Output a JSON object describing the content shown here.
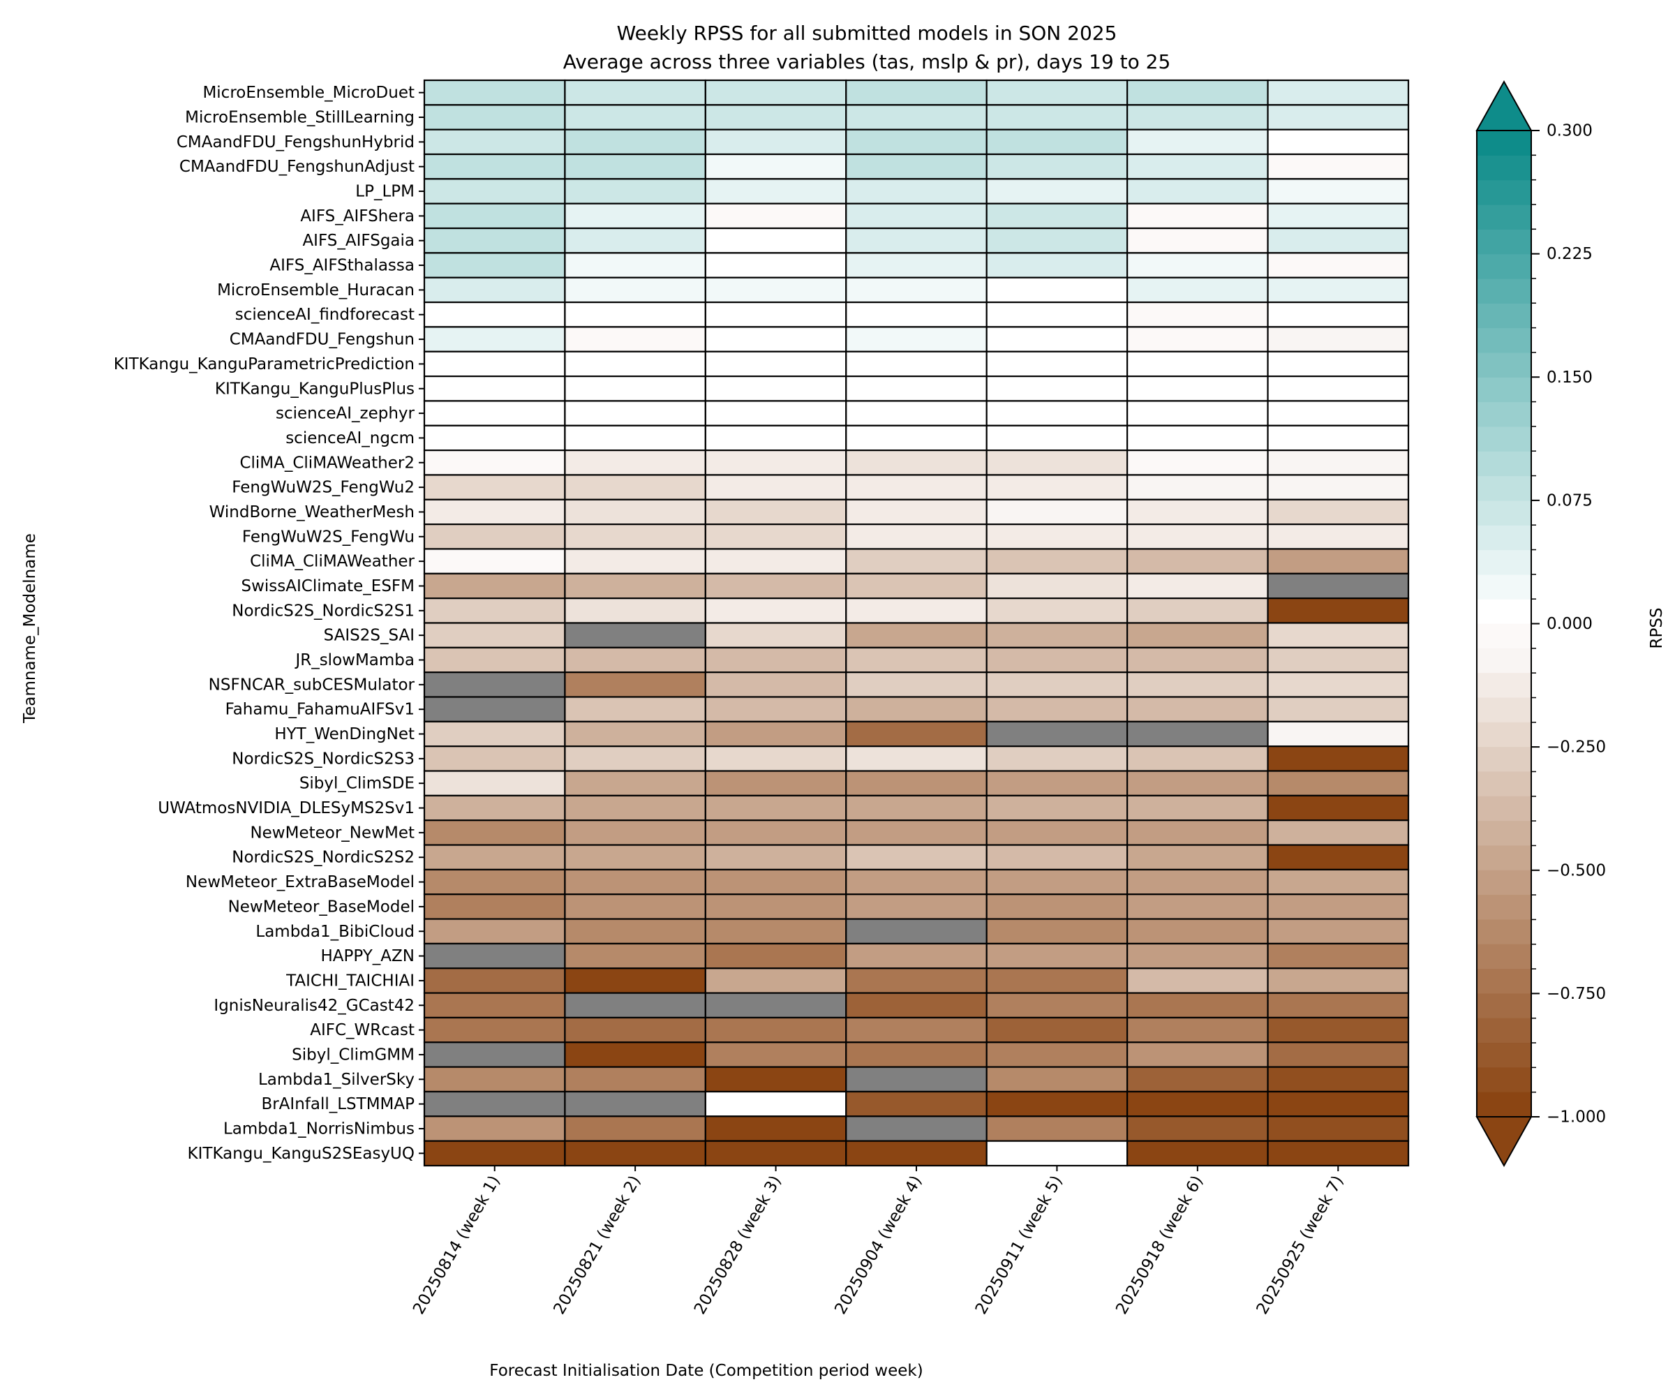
{
  "chart_data": {
    "type": "heatmap",
    "title": "Weekly RPSS for all submitted models in SON 2025",
    "subtitle": "Average across three variables (tas, mslp & pr), days 19 to 25",
    "xlabel": "Forecast Initialisation Date (Competition period week)",
    "ylabel": "Teamname_Modelname",
    "colorbar": {
      "label": "RPSS",
      "ticks": [
        "0.300",
        "0.225",
        "0.150",
        "0.075",
        "0.000",
        "−0.250",
        "−0.500",
        "−0.750",
        "−1.000"
      ],
      "tick_values": [
        0.3,
        0.225,
        0.15,
        0.075,
        0.0,
        -0.25,
        -0.5,
        -0.75,
        -1.0
      ],
      "range": [
        -1.0,
        0.3
      ],
      "extend": "both",
      "positive_levels": 20,
      "negative_levels": 20,
      "positive_color": "#0e8c8a",
      "zero_color": "#ffffff",
      "negative_color": "#8b4513",
      "missing_color": "#808080"
    },
    "columns": [
      "20250814 (week 1)",
      "20250821 (week 2)",
      "20250828 (week 3)",
      "20250904 (week 4)",
      "20250911 (week 5)",
      "20250918 (week 6)",
      "20250925 (week 7)"
    ],
    "rows": [
      {
        "name": "MicroEnsemble_MicroDuet",
        "values": [
          0.08,
          0.068,
          0.068,
          0.08,
          0.068,
          0.08,
          0.053
        ]
      },
      {
        "name": "MicroEnsemble_StillLearning",
        "values": [
          0.08,
          0.068,
          0.068,
          0.068,
          0.068,
          0.068,
          0.053
        ]
      },
      {
        "name": "CMAandFDU_FengshunHybrid",
        "values": [
          0.068,
          0.08,
          0.053,
          0.08,
          0.08,
          0.038,
          0.005
        ]
      },
      {
        "name": "CMAandFDU_FengshunAdjust",
        "values": [
          0.08,
          0.08,
          0.022,
          0.08,
          0.068,
          0.053,
          -0.025
        ]
      },
      {
        "name": "LP_LPM",
        "values": [
          0.068,
          0.068,
          0.038,
          0.053,
          0.038,
          0.053,
          0.022
        ]
      },
      {
        "name": "AIFS_AIFShera",
        "values": [
          0.08,
          0.038,
          -0.025,
          0.053,
          0.068,
          -0.025,
          0.038
        ]
      },
      {
        "name": "AIFS_AIFSgaia",
        "values": [
          0.08,
          0.053,
          0.005,
          0.053,
          0.068,
          -0.025,
          0.053
        ]
      },
      {
        "name": "AIFS_AIFSthalassa",
        "values": [
          0.08,
          0.022,
          0.005,
          0.038,
          0.053,
          0.022,
          -0.025
        ]
      },
      {
        "name": "MicroEnsemble_Huracan",
        "values": [
          0.053,
          0.022,
          0.022,
          0.022,
          0.005,
          0.038,
          0.038
        ]
      },
      {
        "name": "scienceAI_findforecast",
        "values": [
          0.005,
          0.005,
          0.005,
          0.005,
          0.005,
          -0.025,
          0.005
        ]
      },
      {
        "name": "CMAandFDU_Fengshun",
        "values": [
          0.038,
          -0.025,
          0.005,
          0.022,
          0.005,
          -0.025,
          -0.075
        ]
      },
      {
        "name": "KITKangu_KanguParametricPrediction",
        "values": [
          0.005,
          0.005,
          0.005,
          0.005,
          0.005,
          0.005,
          0.005
        ]
      },
      {
        "name": "KITKangu_KanguPlusPlus",
        "values": [
          0.005,
          0.005,
          0.005,
          0.005,
          0.005,
          0.005,
          0.005
        ]
      },
      {
        "name": "scienceAI_zephyr",
        "values": [
          0.005,
          0.005,
          0.005,
          0.005,
          0.005,
          0.005,
          0.005
        ]
      },
      {
        "name": "scienceAI_ngcm",
        "values": [
          0.005,
          0.005,
          0.005,
          0.005,
          0.005,
          0.005,
          0.005
        ]
      },
      {
        "name": "CliMA_CliMAWeather2",
        "values": [
          -0.025,
          -0.125,
          -0.125,
          -0.175,
          -0.175,
          -0.025,
          -0.075
        ]
      },
      {
        "name": "FengWuW2S_FengWu2",
        "values": [
          -0.225,
          -0.225,
          -0.125,
          -0.125,
          -0.125,
          -0.075,
          -0.075
        ]
      },
      {
        "name": "WindBorne_WeatherMesh",
        "values": [
          -0.125,
          -0.175,
          -0.225,
          -0.125,
          -0.075,
          -0.125,
          -0.225
        ]
      },
      {
        "name": "FengWuW2S_FengWu",
        "values": [
          -0.275,
          -0.225,
          -0.225,
          -0.125,
          -0.125,
          -0.125,
          -0.125
        ]
      },
      {
        "name": "CliMA_CliMAWeather",
        "values": [
          -0.025,
          -0.125,
          -0.125,
          -0.275,
          -0.325,
          -0.375,
          -0.525
        ]
      },
      {
        "name": "SwissAIClimate_ESFM",
        "values": [
          -0.475,
          -0.425,
          -0.375,
          -0.325,
          -0.175,
          -0.125,
          null
        ]
      },
      {
        "name": "NordicS2S_NordicS2S1",
        "values": [
          -0.275,
          -0.175,
          -0.125,
          -0.125,
          -0.225,
          -0.275,
          -0.975
        ]
      },
      {
        "name": "SAIS2S_SAI",
        "values": [
          -0.275,
          null,
          -0.225,
          -0.475,
          -0.425,
          -0.475,
          -0.225
        ]
      },
      {
        "name": "JR_slowMamba",
        "values": [
          -0.325,
          -0.375,
          -0.375,
          -0.325,
          -0.375,
          -0.375,
          -0.275
        ]
      },
      {
        "name": "NSFNCAR_subCESMulator",
        "values": [
          null,
          -0.675,
          -0.375,
          -0.275,
          -0.275,
          -0.275,
          -0.225
        ]
      },
      {
        "name": "Fahamu_FahamuAIFSv1",
        "values": [
          null,
          -0.325,
          -0.375,
          -0.425,
          -0.375,
          -0.375,
          -0.275
        ]
      },
      {
        "name": "HYT_WenDingNet",
        "values": [
          -0.275,
          -0.425,
          -0.525,
          -0.775,
          null,
          null,
          -0.075
        ]
      },
      {
        "name": "NordicS2S_NordicS2S3",
        "values": [
          -0.325,
          -0.275,
          -0.225,
          -0.175,
          -0.275,
          -0.325,
          -0.975
        ]
      },
      {
        "name": "Sibyl_ClimSDE",
        "values": [
          -0.175,
          -0.475,
          -0.575,
          -0.575,
          -0.525,
          -0.525,
          -0.625
        ]
      },
      {
        "name": "UWAtmosNVIDIA_DLESyMS2Sv1",
        "values": [
          -0.425,
          -0.475,
          -0.475,
          -0.475,
          -0.425,
          -0.425,
          -0.975
        ]
      },
      {
        "name": "NewMeteor_NewMet",
        "values": [
          -0.625,
          -0.525,
          -0.525,
          -0.525,
          -0.525,
          -0.525,
          -0.425
        ]
      },
      {
        "name": "NordicS2S_NordicS2S2",
        "values": [
          -0.475,
          -0.475,
          -0.425,
          -0.325,
          -0.375,
          -0.475,
          -0.975
        ]
      },
      {
        "name": "NewMeteor_ExtraBaseModel",
        "values": [
          -0.625,
          -0.575,
          -0.575,
          -0.525,
          -0.525,
          -0.525,
          -0.475
        ]
      },
      {
        "name": "NewMeteor_BaseModel",
        "values": [
          -0.675,
          -0.575,
          -0.575,
          -0.525,
          -0.575,
          -0.525,
          -0.525
        ]
      },
      {
        "name": "Lambda1_BibiCloud",
        "values": [
          -0.525,
          -0.625,
          -0.625,
          null,
          -0.625,
          -0.575,
          -0.525
        ]
      },
      {
        "name": "HAPPY_AZN",
        "values": [
          null,
          -0.625,
          -0.725,
          -0.525,
          -0.525,
          -0.525,
          -0.675
        ]
      },
      {
        "name": "TAICHI_TAICHIAI",
        "values": [
          -0.775,
          -0.975,
          -0.475,
          -0.725,
          -0.725,
          -0.375,
          -0.475
        ]
      },
      {
        "name": "IgnisNeuralis42_GCast42",
        "values": [
          -0.725,
          null,
          null,
          -0.825,
          -0.675,
          -0.725,
          -0.725
        ]
      },
      {
        "name": "AIFC_WRcast",
        "values": [
          -0.725,
          -0.775,
          -0.725,
          -0.675,
          -0.825,
          -0.675,
          -0.875
        ]
      },
      {
        "name": "Sibyl_ClimGMM",
        "values": [
          null,
          -0.975,
          -0.675,
          -0.725,
          -0.675,
          -0.575,
          -0.775
        ]
      },
      {
        "name": "Lambda1_SilverSky",
        "values": [
          -0.625,
          -0.675,
          -0.975,
          null,
          -0.625,
          -0.825,
          -0.925
        ]
      },
      {
        "name": "BrAInfall_LSTMMAP",
        "values": [
          null,
          null,
          0.005,
          -0.875,
          -0.975,
          -0.975,
          -0.975
        ]
      },
      {
        "name": "Lambda1_NorrisNimbus",
        "values": [
          -0.575,
          -0.725,
          -0.975,
          null,
          -0.675,
          -0.875,
          -0.925
        ]
      },
      {
        "name": "KITKangu_KanguS2SEasyUQ",
        "values": [
          -0.975,
          -0.975,
          -0.975,
          -0.975,
          0.005,
          -0.975,
          -0.975
        ]
      }
    ]
  }
}
